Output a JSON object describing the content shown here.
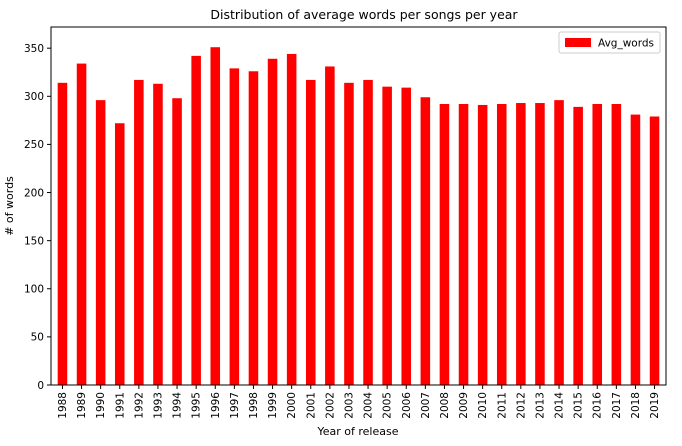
{
  "chart_data": {
    "type": "bar",
    "title": "Distribution of average words per songs per year",
    "xlabel": "Year of release",
    "ylabel": "# of words",
    "categories": [
      "1988",
      "1989",
      "1990",
      "1991",
      "1992",
      "1993",
      "1994",
      "1995",
      "1996",
      "1997",
      "1998",
      "1999",
      "2000",
      "2001",
      "2002",
      "2003",
      "2004",
      "2005",
      "2006",
      "2007",
      "2008",
      "2009",
      "2010",
      "2011",
      "2012",
      "2013",
      "2014",
      "2015",
      "2016",
      "2017",
      "2018",
      "2019"
    ],
    "series": [
      {
        "name": "Avg_words",
        "color": "#ff0000",
        "values": [
          314,
          334,
          296,
          272,
          317,
          313,
          298,
          342,
          351,
          329,
          326,
          339,
          344,
          317,
          331,
          314,
          317,
          310,
          309,
          299,
          292,
          292,
          291,
          292,
          293,
          293,
          296,
          289,
          292,
          292,
          281,
          279
        ]
      }
    ],
    "ylim": [
      0,
      372
    ],
    "yticks": [
      0,
      50,
      100,
      150,
      200,
      250,
      300,
      350
    ],
    "legend_position": "top-right",
    "grid": false
  }
}
